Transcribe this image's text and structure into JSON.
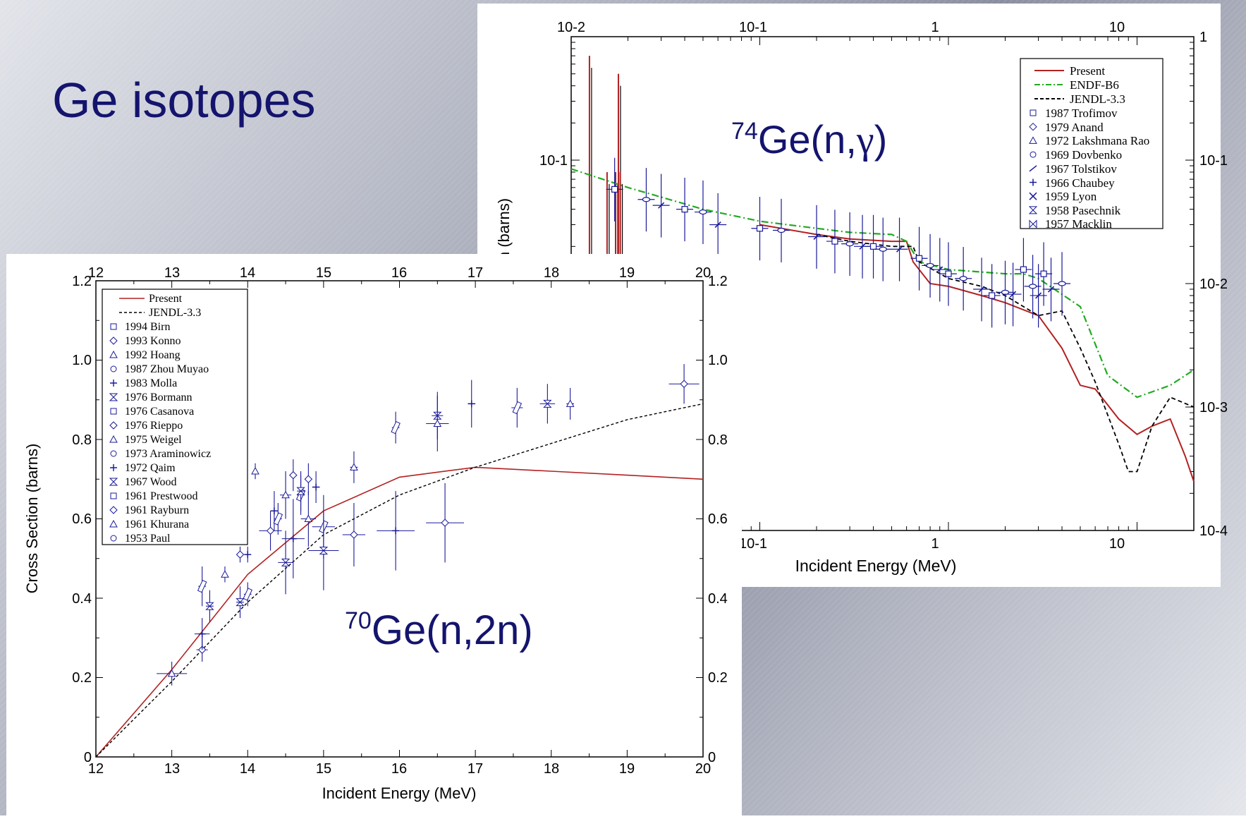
{
  "slide": {
    "title": "Ge isotopes"
  },
  "colors": {
    "present": "#b22222",
    "endf": "#22aa22",
    "jendl": "#000000",
    "exp": "#1a1a9a",
    "title": "#14146e"
  },
  "chart_data": [
    {
      "type": "line",
      "reaction_label": {
        "pre": "74",
        "main": "Ge(n,",
        "gamma": "γ",
        "post": ")"
      },
      "xlabel": "Incident Energy (MeV)",
      "ylabel": "n (barns)",
      "x_scale": "log",
      "y_scale": "log",
      "xlim": [
        0.01,
        20
      ],
      "ylim": [
        0.0001,
        1
      ],
      "top_ticks": [
        "10-2",
        "10-1",
        "1",
        "10"
      ],
      "bottom_ticks": [
        "10-1",
        "1",
        "10"
      ],
      "left_ticks": [
        "10-1"
      ],
      "right_ticks": [
        "1",
        "10-1",
        "10-2",
        "10-3",
        "10-4"
      ],
      "legend": {
        "position": "top-right",
        "entries": [
          "Present",
          "ENDF-B6",
          "JENDL-3.3",
          "1987 Trofimov",
          "1979 Anand",
          "1972 Lakshmana Rao",
          "1969 Dovbenko",
          "1967 Tolstikov",
          "1966 Chaubey",
          "1959 Lyon",
          "1958 Pasechnik",
          "1957 Macklin"
        ]
      },
      "series": [
        {
          "name": "Present",
          "points": [
            [
              0.1,
              0.03
            ],
            [
              0.2,
              0.025
            ],
            [
              0.3,
              0.023
            ],
            [
              0.5,
              0.022
            ],
            [
              0.6,
              0.022
            ],
            [
              0.65,
              0.015
            ],
            [
              0.8,
              0.01
            ],
            [
              1.0,
              0.0095
            ],
            [
              1.5,
              0.008
            ],
            [
              2.0,
              0.007
            ],
            [
              3.0,
              0.0055
            ],
            [
              4.0,
              0.003
            ],
            [
              5.0,
              0.0015
            ],
            [
              6.0,
              0.0014
            ],
            [
              8.0,
              0.0008
            ],
            [
              10.0,
              0.0006
            ],
            [
              12.0,
              0.0007
            ],
            [
              15.0,
              0.0008
            ],
            [
              18.0,
              0.0004
            ],
            [
              20.0,
              0.00025
            ]
          ]
        },
        {
          "name": "ENDF-B6",
          "points": [
            [
              0.01,
              0.085
            ],
            [
              0.02,
              0.06
            ],
            [
              0.05,
              0.04
            ],
            [
              0.1,
              0.032
            ],
            [
              0.2,
              0.028
            ],
            [
              0.3,
              0.026
            ],
            [
              0.5,
              0.025
            ],
            [
              0.6,
              0.022
            ],
            [
              0.7,
              0.015
            ],
            [
              1.0,
              0.013
            ],
            [
              2.0,
              0.012
            ],
            [
              2.5,
              0.012
            ],
            [
              3.0,
              0.011
            ],
            [
              5.0,
              0.0065
            ],
            [
              7.0,
              0.0018
            ],
            [
              10.0,
              0.0012
            ],
            [
              15.0,
              0.0015
            ],
            [
              20.0,
              0.002
            ]
          ]
        },
        {
          "name": "JENDL-3.3",
          "points": [
            [
              0.2,
              0.025
            ],
            [
              0.3,
              0.022
            ],
            [
              0.5,
              0.02
            ],
            [
              0.65,
              0.02
            ],
            [
              0.7,
              0.015
            ],
            [
              1.0,
              0.011
            ],
            [
              1.5,
              0.0095
            ],
            [
              2.0,
              0.008
            ],
            [
              3.0,
              0.0055
            ],
            [
              4.0,
              0.006
            ],
            [
              5.0,
              0.003
            ],
            [
              6.0,
              0.0016
            ],
            [
              8.0,
              0.0005
            ],
            [
              9.0,
              0.0003
            ],
            [
              10.0,
              0.0003
            ],
            [
              12.0,
              0.0007
            ],
            [
              15.0,
              0.0012
            ],
            [
              20.0,
              0.001
            ]
          ]
        }
      ],
      "experiments": [
        [
          0.017,
          0.058
        ],
        [
          0.025,
          0.048
        ],
        [
          0.03,
          0.043
        ],
        [
          0.04,
          0.04
        ],
        [
          0.05,
          0.038
        ],
        [
          0.06,
          0.03
        ],
        [
          0.1,
          0.028
        ],
        [
          0.13,
          0.027
        ],
        [
          0.2,
          0.024
        ],
        [
          0.25,
          0.022
        ],
        [
          0.3,
          0.021
        ],
        [
          0.35,
          0.02
        ],
        [
          0.4,
          0.02
        ],
        [
          0.45,
          0.019
        ],
        [
          0.55,
          0.019
        ],
        [
          0.7,
          0.016
        ],
        [
          0.8,
          0.014
        ],
        [
          0.9,
          0.013
        ],
        [
          1.0,
          0.012
        ],
        [
          1.2,
          0.011
        ],
        [
          1.5,
          0.009
        ],
        [
          1.7,
          0.008
        ],
        [
          2.0,
          0.0085
        ],
        [
          2.2,
          0.0082
        ],
        [
          2.5,
          0.013
        ],
        [
          2.8,
          0.0095
        ],
        [
          3.0,
          0.008
        ],
        [
          3.2,
          0.012
        ],
        [
          4.0,
          0.01
        ],
        [
          3.5,
          0.009
        ]
      ]
    },
    {
      "type": "line",
      "reaction_label": {
        "pre": "70",
        "main": "Ge(n,2n)"
      },
      "xlabel": "Incident Energy (MeV)",
      "ylabel": "Cross Section (barns)",
      "xlim": [
        12,
        20
      ],
      "ylim": [
        0,
        1.2
      ],
      "x_ticks": [
        "12",
        "13",
        "14",
        "15",
        "16",
        "17",
        "18",
        "19",
        "20"
      ],
      "y_ticks": [
        "0",
        "0.2",
        "0.4",
        "0.6",
        "0.8",
        "1.0",
        "1.2"
      ],
      "legend": {
        "position": "top-left",
        "entries": [
          "Present",
          "JENDL-3.3",
          "1994 Birn",
          "1993 Konno",
          "1992 Hoang",
          "1987 Zhou Muyao",
          "1983 Molla",
          "1976 Bormann",
          "1976 Casanova",
          "1976 Rieppo",
          "1975 Weigel",
          "1973 Araminowicz",
          "1972 Qaim",
          "1967 Wood",
          "1961 Prestwood",
          "1961 Rayburn",
          "1961 Khurana",
          "1953 Paul"
        ]
      },
      "series": [
        {
          "name": "Present",
          "points": [
            [
              12.0,
              0.0
            ],
            [
              13.0,
              0.22
            ],
            [
              14.0,
              0.46
            ],
            [
              15.0,
              0.62
            ],
            [
              16.0,
              0.705
            ],
            [
              17.0,
              0.73
            ],
            [
              18.0,
              0.72
            ],
            [
              19.0,
              0.71
            ],
            [
              20.0,
              0.7
            ]
          ]
        },
        {
          "name": "JENDL-3.3",
          "points": [
            [
              12.0,
              0.0
            ],
            [
              13.0,
              0.19
            ],
            [
              14.0,
              0.39
            ],
            [
              15.0,
              0.56
            ],
            [
              16.0,
              0.66
            ],
            [
              17.0,
              0.73
            ],
            [
              18.0,
              0.79
            ],
            [
              19.0,
              0.85
            ],
            [
              20.0,
              0.89
            ]
          ]
        }
      ],
      "experiments": [
        [
          13.0,
          0.21,
          0.4,
          0.03
        ],
        [
          13.4,
          0.27,
          0.15,
          0.03
        ],
        [
          13.4,
          0.31,
          0.2,
          0.04
        ],
        [
          13.4,
          0.43,
          0.1,
          0.05
        ],
        [
          13.5,
          0.38,
          0.1,
          0.04
        ],
        [
          13.7,
          0.46,
          0.05,
          0.02
        ],
        [
          13.9,
          0.51,
          0.05,
          0.02
        ],
        [
          14.0,
          0.51,
          0.05,
          0.02
        ],
        [
          14.0,
          0.41,
          0.1,
          0.03
        ],
        [
          13.9,
          0.39,
          0.1,
          0.04
        ],
        [
          14.1,
          0.72,
          0.05,
          0.02
        ],
        [
          14.3,
          0.57,
          0.3,
          0.05
        ],
        [
          14.35,
          0.62,
          0.1,
          0.05
        ],
        [
          14.4,
          0.6,
          0.1,
          0.04
        ],
        [
          14.5,
          0.49,
          0.2,
          0.08
        ],
        [
          14.5,
          0.66,
          0.15,
          0.06
        ],
        [
          14.6,
          0.71,
          0.1,
          0.04
        ],
        [
          14.6,
          0.55,
          0.3,
          0.1
        ],
        [
          14.7,
          0.66,
          0.1,
          0.05
        ],
        [
          14.7,
          0.67,
          0.1,
          0.05
        ],
        [
          14.8,
          0.6,
          0.2,
          0.07
        ],
        [
          14.8,
          0.7,
          0.1,
          0.04
        ],
        [
          14.9,
          0.68,
          0.1,
          0.04
        ],
        [
          15.0,
          0.58,
          0.3,
          0.08
        ],
        [
          15.0,
          0.52,
          0.4,
          0.1
        ],
        [
          15.4,
          0.73,
          0.1,
          0.04
        ],
        [
          15.4,
          0.56,
          0.3,
          0.08
        ],
        [
          15.95,
          0.57,
          0.5,
          0.1
        ],
        [
          15.95,
          0.83,
          0.1,
          0.04
        ],
        [
          16.5,
          0.86,
          0.15,
          0.06
        ],
        [
          16.5,
          0.84,
          0.3,
          0.07
        ],
        [
          16.6,
          0.59,
          0.5,
          0.1
        ],
        [
          16.95,
          0.89,
          0.1,
          0.06
        ],
        [
          17.55,
          0.88,
          0.15,
          0.05
        ],
        [
          17.95,
          0.89,
          0.2,
          0.05
        ],
        [
          18.25,
          0.89,
          0.1,
          0.04
        ],
        [
          19.75,
          0.94,
          0.4,
          0.05
        ]
      ]
    }
  ]
}
